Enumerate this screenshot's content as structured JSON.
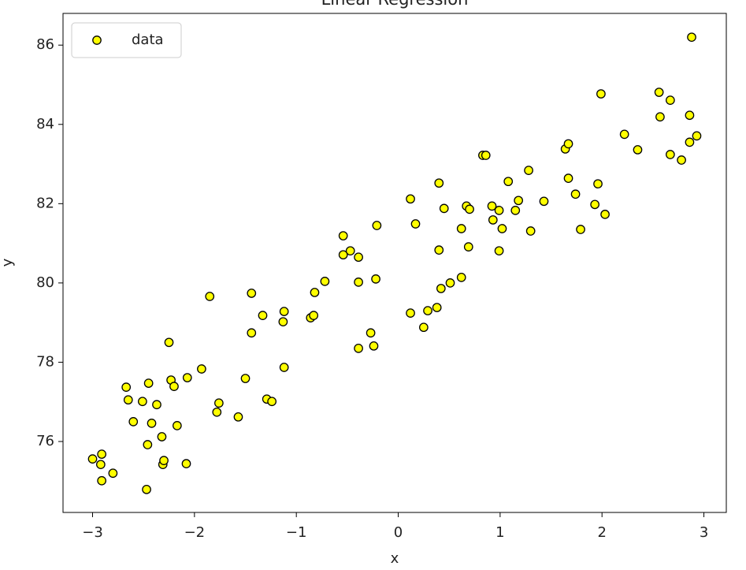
{
  "chart_data": {
    "type": "scatter",
    "title": "Linear Regression",
    "xlabel": "x",
    "ylabel": "y",
    "legend": "upper left",
    "grid": false,
    "xlim": [
      -3.29,
      3.22
    ],
    "ylim": [
      74.21,
      86.8
    ],
    "xticks": [
      {
        "value": -3,
        "label": "−3"
      },
      {
        "value": -2,
        "label": "−2"
      },
      {
        "value": -1,
        "label": "−1"
      },
      0,
      1,
      2,
      3
    ],
    "yticks": [
      76,
      78,
      80,
      82,
      84,
      86
    ],
    "series": [
      {
        "name": "data",
        "color": "#ffff00",
        "edgecolor": "#000000",
        "x": [
          -3.0,
          -2.92,
          -2.91,
          -2.91,
          -2.8,
          -2.67,
          -2.65,
          -2.6,
          -2.51,
          -2.47,
          -2.46,
          -2.45,
          -2.42,
          -2.37,
          -2.32,
          -2.31,
          -2.3,
          -2.25,
          -2.23,
          -2.2,
          -2.17,
          -2.07,
          -2.08,
          -1.93,
          -1.85,
          -1.78,
          -1.76,
          -1.57,
          -1.5,
          -1.44,
          -1.44,
          -1.33,
          -1.29,
          -1.24,
          -1.13,
          -1.12,
          -1.12,
          -0.86,
          -0.83,
          -0.82,
          -0.72,
          -0.54,
          -0.54,
          -0.47,
          -0.39,
          -0.39,
          -0.39,
          -0.27,
          -0.24,
          -0.22,
          -0.21,
          0.12,
          0.12,
          0.17,
          0.25,
          0.29,
          0.38,
          0.4,
          0.4,
          0.42,
          0.45,
          0.51,
          0.62,
          0.62,
          0.67,
          0.7,
          0.69,
          0.83,
          0.86,
          0.92,
          0.93,
          0.99,
          0.99,
          1.02,
          1.08,
          1.15,
          1.18,
          1.28,
          1.3,
          1.43,
          1.64,
          1.67,
          1.67,
          1.74,
          1.79,
          1.93,
          1.96,
          1.99,
          2.03,
          2.22,
          2.35,
          2.56,
          2.57,
          2.67,
          2.67,
          2.78,
          2.86,
          2.86,
          2.88,
          2.93
        ],
        "values": [
          75.56,
          75.42,
          75.68,
          75.01,
          75.2,
          77.37,
          77.05,
          76.5,
          77.01,
          74.79,
          75.92,
          77.47,
          76.46,
          76.93,
          76.12,
          75.42,
          75.52,
          78.5,
          77.55,
          77.39,
          76.4,
          77.61,
          75.44,
          77.83,
          79.66,
          76.74,
          76.97,
          76.62,
          77.59,
          79.74,
          78.74,
          79.18,
          77.07,
          77.01,
          79.02,
          79.28,
          77.87,
          79.12,
          79.18,
          79.76,
          80.04,
          81.19,
          80.71,
          80.81,
          80.65,
          80.02,
          78.35,
          78.74,
          78.41,
          80.1,
          81.45,
          82.12,
          79.24,
          81.49,
          78.88,
          79.3,
          79.38,
          82.52,
          80.83,
          79.86,
          81.88,
          80.0,
          81.37,
          80.14,
          81.94,
          81.86,
          80.91,
          83.22,
          83.22,
          81.94,
          81.59,
          81.83,
          80.81,
          81.37,
          82.56,
          81.83,
          82.08,
          82.84,
          81.31,
          82.06,
          83.38,
          82.64,
          83.51,
          82.24,
          81.35,
          81.98,
          82.5,
          84.77,
          81.73,
          83.75,
          83.36,
          84.81,
          84.19,
          84.61,
          83.24,
          83.1,
          84.23,
          83.55,
          86.2,
          83.71
        ]
      }
    ]
  }
}
